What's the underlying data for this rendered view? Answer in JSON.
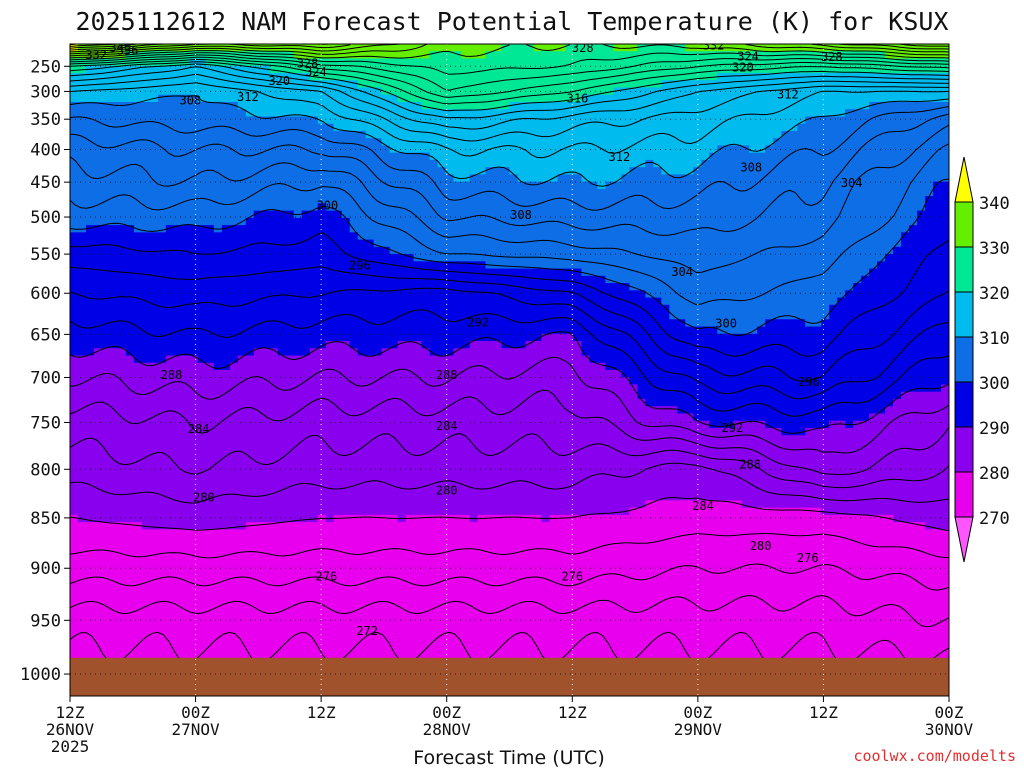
{
  "chart_data": {
    "type": "heatmap",
    "title": "2025112612 NAM Forecast Potential Temperature (K) for KSUX",
    "xlabel": "Forecast Time (UTC)",
    "ylabel": "",
    "credit": "coolwx.com/modelts",
    "x_ticks": [
      {
        "line1": "12Z",
        "line2": "26NOV",
        "line3": "2025",
        "hours": 0
      },
      {
        "line1": "00Z",
        "line2": "27NOV",
        "line3": "",
        "hours": 12
      },
      {
        "line1": "12Z",
        "line2": "",
        "line3": "",
        "hours": 24
      },
      {
        "line1": "00Z",
        "line2": "28NOV",
        "line3": "",
        "hours": 36
      },
      {
        "line1": "12Z",
        "line2": "",
        "line3": "",
        "hours": 48
      },
      {
        "line1": "00Z",
        "line2": "29NOV",
        "line3": "",
        "hours": 60
      },
      {
        "line1": "12Z",
        "line2": "",
        "line3": "",
        "hours": 72
      },
      {
        "line1": "00Z",
        "line2": "30NOV",
        "line3": "",
        "hours": 84
      }
    ],
    "y_ticks": [
      "250",
      "300",
      "350",
      "400",
      "450",
      "500",
      "550",
      "600",
      "650",
      "700",
      "750",
      "800",
      "850",
      "900",
      "950",
      "1000"
    ],
    "y_range_hPa": [
      200,
      1020
    ],
    "x_range_hours": [
      0,
      84
    ],
    "colorbar": {
      "labels": [
        "340",
        "330",
        "320",
        "310",
        "300",
        "290",
        "280",
        "270"
      ],
      "colors": [
        "#ffff00",
        "#66ee00",
        "#00e896",
        "#00bbee",
        "#0e6ee6",
        "#0000e6",
        "#8800ee",
        "#e800ee",
        "#ff55ff"
      ]
    },
    "ground_color": "#a0522d",
    "profiles": [
      {
        "time": 0,
        "theta": {
          "1000": 271,
          "950": 273,
          "900": 277,
          "850": 280,
          "800": 283,
          "750": 285,
          "700": 288,
          "650": 291,
          "600": 294,
          "550": 297,
          "500": 301,
          "450": 303,
          "400": 305,
          "350": 308,
          "300": 312,
          "250": 322,
          "200": 345
        }
      },
      {
        "time": 12,
        "theta": {
          "1000": 271,
          "950": 273,
          "900": 277,
          "850": 281,
          "800": 284,
          "750": 286,
          "700": 289,
          "650": 292,
          "600": 295,
          "550": 298,
          "500": 301,
          "450": 304,
          "400": 306,
          "350": 309,
          "300": 310,
          "250": 316,
          "200": 336
        }
      },
      {
        "time": 24,
        "theta": {
          "1000": 271,
          "950": 273,
          "900": 277,
          "850": 280,
          "800": 283,
          "750": 285,
          "700": 288,
          "650": 291,
          "600": 294,
          "550": 297,
          "500": 299,
          "450": 302,
          "400": 306,
          "350": 310,
          "300": 314,
          "250": 325,
          "200": 338
        }
      },
      {
        "time": 36,
        "theta": {
          "1000": 271,
          "950": 273,
          "900": 277,
          "850": 280,
          "800": 283,
          "750": 285,
          "700": 288,
          "650": 291,
          "600": 293,
          "550": 302,
          "500": 306,
          "450": 309,
          "400": 312,
          "350": 318,
          "300": 326,
          "250": 329,
          "200": 331
        }
      },
      {
        "time": 48,
        "theta": {
          "1000": 271,
          "950": 273,
          "900": 277,
          "850": 280,
          "800": 283,
          "750": 285,
          "700": 287,
          "650": 290,
          "600": 296,
          "550": 303,
          "500": 307,
          "450": 310,
          "400": 312,
          "350": 315,
          "300": 322,
          "250": 328,
          "200": 330
        }
      },
      {
        "time": 60,
        "theta": {
          "1000": 271,
          "950": 273,
          "900": 276,
          "850": 279,
          "800": 281,
          "750": 290,
          "700": 295,
          "650": 300,
          "600": 303,
          "550": 305,
          "500": 307,
          "450": 309,
          "400": 311,
          "350": 313,
          "300": 316,
          "250": 324,
          "200": 331
        }
      },
      {
        "time": 72,
        "theta": {
          "1000": 271,
          "950": 273,
          "900": 276,
          "850": 279,
          "800": 287,
          "750": 291,
          "700": 296,
          "650": 299,
          "600": 301,
          "550": 303,
          "500": 305,
          "450": 306,
          "400": 308,
          "350": 310,
          "300": 312,
          "250": 322,
          "200": 335
        }
      },
      {
        "time": 84,
        "theta": {
          "1000": 271,
          "950": 274,
          "900": 277,
          "850": 281,
          "800": 284,
          "750": 286,
          "700": 290,
          "650": 293,
          "600": 296,
          "550": 297,
          "500": 299,
          "450": 300,
          "400": 302,
          "350": 305,
          "300": 312,
          "250": 325,
          "200": 340
        }
      }
    ],
    "contour_interval": 2,
    "contour_labels": [
      {
        "text": "340",
        "time": 4.8,
        "p": 208
      },
      {
        "text": "336",
        "time": 5.5,
        "p": 215
      },
      {
        "text": "332",
        "time": 2.5,
        "p": 226
      },
      {
        "text": "332",
        "time": 61.5,
        "p": 204
      },
      {
        "text": "328",
        "time": 22.7,
        "p": 244
      },
      {
        "text": "328",
        "time": 49,
        "p": 209
      },
      {
        "text": "328",
        "time": 72.8,
        "p": 230
      },
      {
        "text": "324",
        "time": 23.5,
        "p": 262
      },
      {
        "text": "324",
        "time": 64.8,
        "p": 229
      },
      {
        "text": "320",
        "time": 20,
        "p": 280
      },
      {
        "text": "320",
        "time": 64.3,
        "p": 253
      },
      {
        "text": "316",
        "time": 48.5,
        "p": 313
      },
      {
        "text": "312",
        "time": 17,
        "p": 310
      },
      {
        "text": "312",
        "time": 68.6,
        "p": 306
      },
      {
        "text": "312",
        "time": 52.5,
        "p": 412
      },
      {
        "text": "308",
        "time": 11.5,
        "p": 317
      },
      {
        "text": "308",
        "time": 65.1,
        "p": 428
      },
      {
        "text": "308",
        "time": 43.1,
        "p": 497
      },
      {
        "text": "304",
        "time": 74.7,
        "p": 451
      },
      {
        "text": "304",
        "time": 58.5,
        "p": 573
      },
      {
        "text": "300",
        "time": 24.6,
        "p": 484
      },
      {
        "text": "300",
        "time": 62.7,
        "p": 637
      },
      {
        "text": "296",
        "time": 27.7,
        "p": 565
      },
      {
        "text": "296",
        "time": 70.6,
        "p": 705
      },
      {
        "text": "292",
        "time": 39,
        "p": 636
      },
      {
        "text": "292",
        "time": 63.3,
        "p": 756
      },
      {
        "text": "288",
        "time": 9.7,
        "p": 697
      },
      {
        "text": "288",
        "time": 36,
        "p": 697
      },
      {
        "text": "288",
        "time": 65,
        "p": 795
      },
      {
        "text": "284",
        "time": 12.3,
        "p": 757
      },
      {
        "text": "284",
        "time": 36,
        "p": 754
      },
      {
        "text": "284",
        "time": 60.5,
        "p": 838
      },
      {
        "text": "280",
        "time": 12.8,
        "p": 829
      },
      {
        "text": "280",
        "time": 36,
        "p": 822
      },
      {
        "text": "280",
        "time": 66,
        "p": 878
      },
      {
        "text": "276",
        "time": 24.5,
        "p": 908
      },
      {
        "text": "276",
        "time": 48,
        "p": 908
      },
      {
        "text": "276",
        "time": 70.5,
        "p": 890
      },
      {
        "text": "272",
        "time": 28.4,
        "p": 960
      }
    ]
  }
}
